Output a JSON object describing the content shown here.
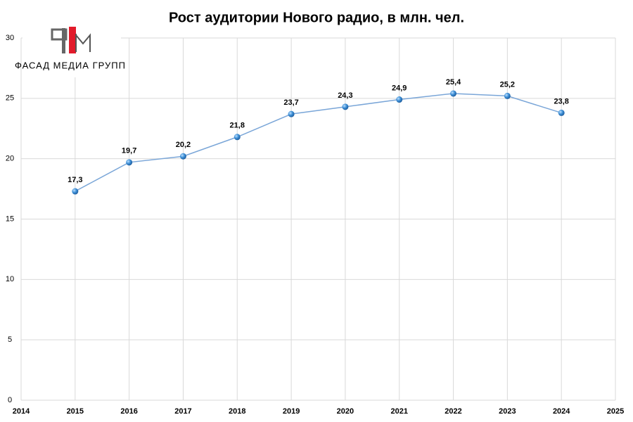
{
  "chart_data": {
    "type": "line",
    "title": "Рост аудитории Нового радио, в млн. чел.",
    "x": [
      2015,
      2016,
      2017,
      2018,
      2019,
      2020,
      2021,
      2022,
      2023,
      2024
    ],
    "values": [
      17.3,
      19.7,
      20.2,
      21.8,
      23.7,
      24.3,
      24.9,
      25.4,
      25.2,
      23.8
    ],
    "value_labels": [
      "17,3",
      "19,7",
      "20,2",
      "21,8",
      "23,7",
      "24,3",
      "24,9",
      "25,4",
      "25,2",
      "23,8"
    ],
    "color": "#7aa6d8",
    "xlim": [
      2014,
      2025
    ],
    "xticks": [
      2014,
      2015,
      2016,
      2017,
      2018,
      2019,
      2020,
      2021,
      2022,
      2023,
      2024,
      2025
    ],
    "ylim": [
      0,
      30
    ],
    "yticks": [
      0,
      5,
      10,
      15,
      20,
      25,
      30
    ],
    "grid": true
  },
  "logo": {
    "text": "ФАСАД МЕДИА ГРУПП"
  }
}
